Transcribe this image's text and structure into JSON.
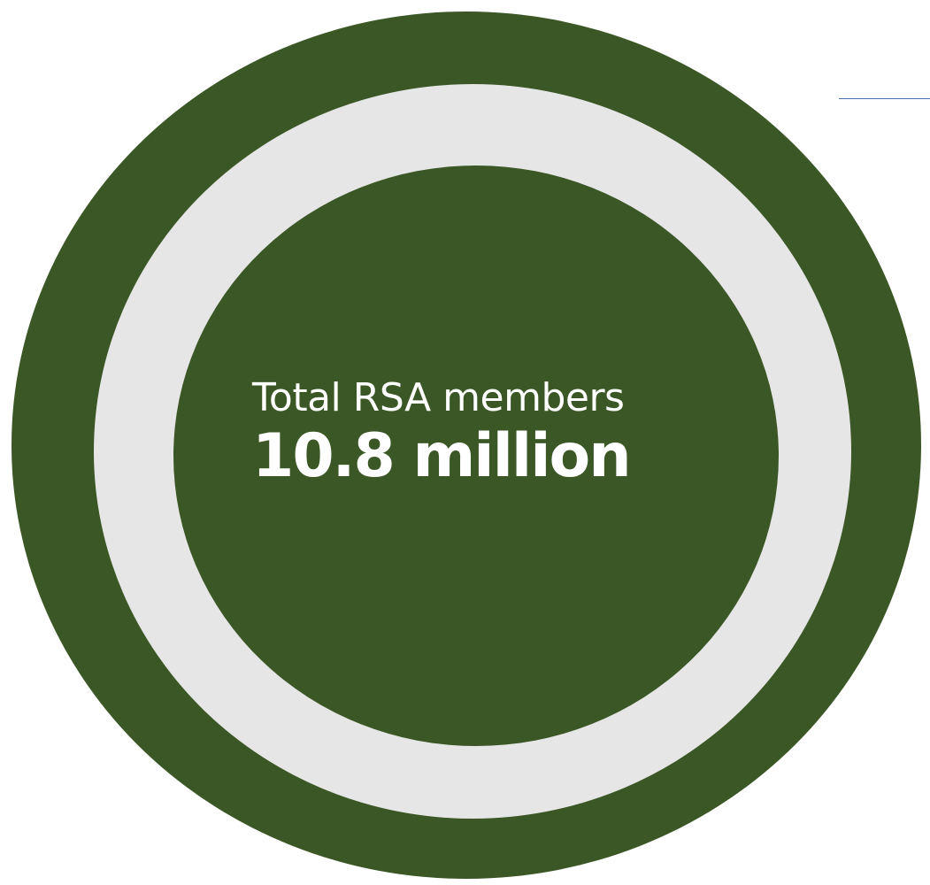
{
  "colors": {
    "ring_green": "#3b5725",
    "ring_gray": "#e6e6e6",
    "text": "#ffffff",
    "accent_line": "#4a6fb0"
  },
  "stat": {
    "label": "Total RSA members",
    "value": "10.8 million"
  }
}
